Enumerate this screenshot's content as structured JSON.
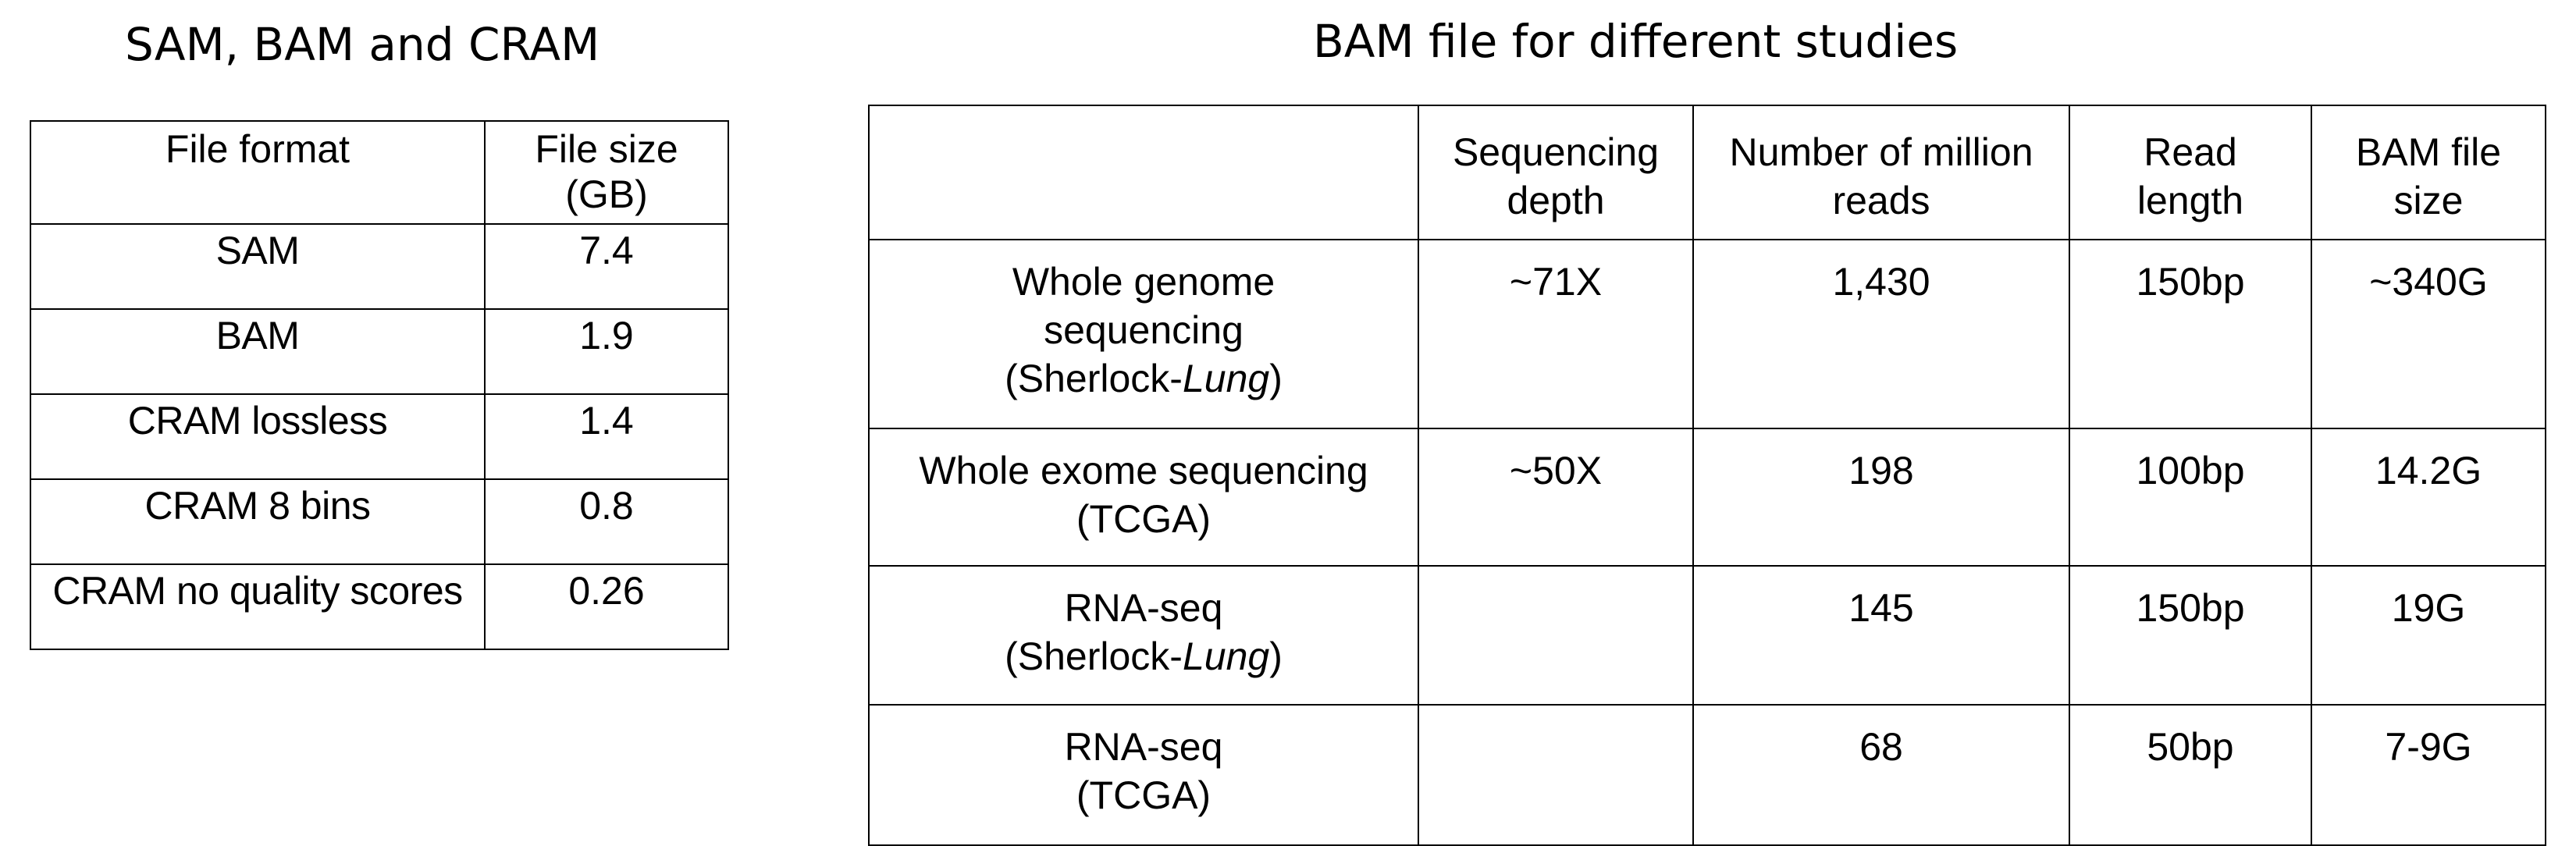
{
  "left": {
    "title": "SAM, BAM and CRAM",
    "headers": {
      "format": "File format",
      "size_line1": "File size",
      "size_line2": "(GB)"
    },
    "rows": [
      {
        "format": "SAM",
        "size": "7.4"
      },
      {
        "format": "BAM",
        "size": "1.9"
      },
      {
        "format": "CRAM lossless",
        "size": "1.4"
      },
      {
        "format": "CRAM 8 bins",
        "size": "0.8"
      },
      {
        "format": "CRAM no quality scores",
        "size": "0.26"
      }
    ]
  },
  "right": {
    "title": "BAM file for different studies",
    "headers": {
      "depth_1": "Sequencing",
      "depth_2": "depth",
      "reads_1": "Number of million",
      "reads_2": "reads",
      "length_1": "Read",
      "length_2": "length",
      "bam_1": "BAM file",
      "bam_2": "size"
    },
    "rows": [
      {
        "study_line1": "Whole genome",
        "study_line2": "sequencing",
        "study_line3_prefix": "(Sherlock-",
        "study_line3_italic": "Lung",
        "study_line3_suffix": ")",
        "depth": "~71X",
        "reads": "1,430",
        "length": "150bp",
        "bam": "~340G"
      },
      {
        "study_line1": "Whole exome sequencing",
        "study_line2": "(TCGA)",
        "depth": "~50X",
        "reads": "198",
        "length": "100bp",
        "bam": "14.2G"
      },
      {
        "study_line1": "RNA-seq",
        "study_line2_prefix": "(Sherlock-",
        "study_line2_italic": "Lung",
        "study_line2_suffix": ")",
        "depth": "",
        "reads": "145",
        "length": "150bp",
        "bam": "19G"
      },
      {
        "study_line1": "RNA-seq",
        "study_line2": "(TCGA)",
        "depth": "",
        "reads": "68",
        "length": "50bp",
        "bam": "7-9G"
      }
    ]
  }
}
